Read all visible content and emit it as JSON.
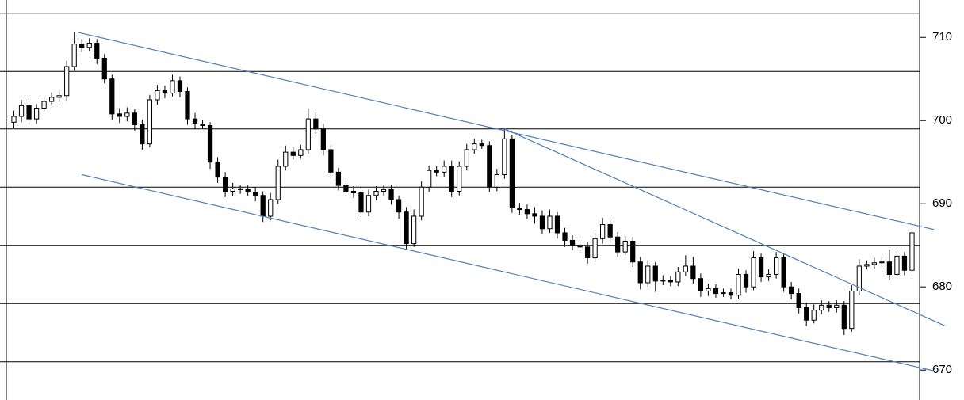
{
  "chart_data": {
    "type": "candlestick",
    "open": [
      699.8,
      700.5,
      701.8,
      700.2,
      701.5,
      702.3,
      702.8,
      703.0,
      706.5,
      709.2,
      708.8,
      709.3,
      707.5,
      705.0,
      700.8,
      700.5,
      700.9,
      699.5,
      697.2,
      702.5,
      703.6,
      703.3,
      704.8,
      703.5,
      700.2,
      699.6,
      699.4,
      695.0,
      693.2,
      691.5,
      691.8,
      691.7,
      691.4,
      691.0,
      688.5,
      690.5,
      694.5,
      696.2,
      695.8,
      696.5,
      700.2,
      699.0,
      696.5,
      693.8,
      692.2,
      691.5,
      691.3,
      689.0,
      691.0,
      691.5,
      691.7,
      690.5,
      689.0,
      685.2,
      688.5,
      692.0,
      694.0,
      693.8,
      694.5,
      691.5,
      694.5,
      696.5,
      697.2,
      697.0,
      692.0,
      693.5,
      697.8,
      689.5,
      689.3,
      688.8,
      688.5,
      687.0,
      688.5,
      686.5,
      685.6,
      685.0,
      684.8,
      683.5,
      685.8,
      687.5,
      686.0,
      684.2,
      685.5,
      683.0,
      680.5,
      682.5,
      680.7,
      680.8,
      680.6,
      681.8,
      682.5,
      681.0,
      679.5,
      679.8,
      679.2,
      679.3,
      679.0,
      681.5,
      680.0,
      683.5,
      681.2,
      681.5,
      683.5,
      680.0,
      679.2,
      677.5,
      676.0,
      677.2,
      677.8,
      677.5,
      677.8,
      675.0,
      679.5,
      682.5,
      682.7,
      682.9,
      683.0,
      681.5,
      683.7,
      682.0
    ],
    "high": [
      701.2,
      702.5,
      702.4,
      702.0,
      702.9,
      703.4,
      703.7,
      707.2,
      710.7,
      709.8,
      709.9,
      709.8,
      708.0,
      705.5,
      701.5,
      701.6,
      701.4,
      700.1,
      703.1,
      704.3,
      704.2,
      705.5,
      705.3,
      704.0,
      700.9,
      700.1,
      699.8,
      695.6,
      693.8,
      692.5,
      692.3,
      692.2,
      692.0,
      691.5,
      691.3,
      695.3,
      697.0,
      696.8,
      697.1,
      701.5,
      701.0,
      699.6,
      697.0,
      694.3,
      692.8,
      692.1,
      691.8,
      691.7,
      692.1,
      692.3,
      692.2,
      691.0,
      689.6,
      689.3,
      692.7,
      694.6,
      694.5,
      695.2,
      695.2,
      695.1,
      697.2,
      697.8,
      697.7,
      697.5,
      694.2,
      699.0,
      698.3,
      690.1,
      689.9,
      689.6,
      689.2,
      689.3,
      689.0,
      687.1,
      686.2,
      685.6,
      685.4,
      686.5,
      688.3,
      688.0,
      686.6,
      686.1,
      686.0,
      683.6,
      683.2,
      683.0,
      681.4,
      681.3,
      682.4,
      683.8,
      683.6,
      681.6,
      680.4,
      680.3,
      679.8,
      679.8,
      682.2,
      682.0,
      684.3,
      684.0,
      682.1,
      684.2,
      684.0,
      680.6,
      679.8,
      678.1,
      677.9,
      678.4,
      678.3,
      678.4,
      678.3,
      680.2,
      683.3,
      683.2,
      683.5,
      683.6,
      684.5,
      684.3,
      684.2,
      687.1
    ],
    "low": [
      699.1,
      699.8,
      699.5,
      699.6,
      701.0,
      701.8,
      702.2,
      702.3,
      706.0,
      708.2,
      708.3,
      706.8,
      704.5,
      700.1,
      699.7,
      699.9,
      698.8,
      696.5,
      696.8,
      701.9,
      702.7,
      702.9,
      702.8,
      699.5,
      699.0,
      699.0,
      694.2,
      692.5,
      690.8,
      690.9,
      691.2,
      690.9,
      690.3,
      687.8,
      688.0,
      690.0,
      694.0,
      695.3,
      695.4,
      696.0,
      698.4,
      695.8,
      693.0,
      691.6,
      690.9,
      690.7,
      688.4,
      688.5,
      690.4,
      691.0,
      689.9,
      688.2,
      684.5,
      684.8,
      688.0,
      691.4,
      693.3,
      693.2,
      690.8,
      691.0,
      694.0,
      696.0,
      696.6,
      691.4,
      691.5,
      693.0,
      688.9,
      688.7,
      688.2,
      687.6,
      686.3,
      686.5,
      685.8,
      684.8,
      684.4,
      684.1,
      682.8,
      683.0,
      685.2,
      685.3,
      683.6,
      683.8,
      682.4,
      679.7,
      680.0,
      679.4,
      680.2,
      680.1,
      680.1,
      681.3,
      680.4,
      678.8,
      678.9,
      678.7,
      678.8,
      678.5,
      678.6,
      679.3,
      679.6,
      680.6,
      680.7,
      681.0,
      679.4,
      678.5,
      676.8,
      675.3,
      675.6,
      676.7,
      677.0,
      676.9,
      674.2,
      674.6,
      679.0,
      682.1,
      682.2,
      682.4,
      680.8,
      681.0,
      681.4,
      681.6
    ],
    "close": [
      700.5,
      701.8,
      700.2,
      701.5,
      702.3,
      702.8,
      703.0,
      706.5,
      709.2,
      708.8,
      709.3,
      707.5,
      705.0,
      700.8,
      700.5,
      700.9,
      699.5,
      697.2,
      702.5,
      703.6,
      703.3,
      704.8,
      703.5,
      700.2,
      699.6,
      699.4,
      695.0,
      693.2,
      691.5,
      691.8,
      691.7,
      691.4,
      691.0,
      688.5,
      690.5,
      694.5,
      696.2,
      695.8,
      696.5,
      700.2,
      699.0,
      696.5,
      693.8,
      692.2,
      691.5,
      691.3,
      689.0,
      691.0,
      691.5,
      691.7,
      690.5,
      689.0,
      685.2,
      688.5,
      692.0,
      694.0,
      693.8,
      694.5,
      691.5,
      694.5,
      696.5,
      697.2,
      697.0,
      692.0,
      693.5,
      697.8,
      689.5,
      689.3,
      688.8,
      688.5,
      687.0,
      688.5,
      686.5,
      685.6,
      685.0,
      684.8,
      683.5,
      685.8,
      687.5,
      686.0,
      684.2,
      685.5,
      683.0,
      680.5,
      682.5,
      680.7,
      680.8,
      680.6,
      681.8,
      682.5,
      681.0,
      679.5,
      679.8,
      679.2,
      679.3,
      679.0,
      681.5,
      680.0,
      683.5,
      681.2,
      681.5,
      683.5,
      680.0,
      679.2,
      677.5,
      676.0,
      677.2,
      677.8,
      677.5,
      677.8,
      675.0,
      679.5,
      682.5,
      682.7,
      682.9,
      683.0,
      681.5,
      683.7,
      682.0,
      686.5
    ],
    "up_color": "#ffffff",
    "down_color": "#000000",
    "xlim": [
      -1,
      120
    ],
    "ylim": [
      666.4,
      714.5
    ],
    "yticks": [
      670,
      680,
      690,
      700,
      710
    ],
    "levels": [
      712.9,
      705.9,
      699.0,
      692.0,
      685.0,
      678.0,
      671.0
    ],
    "trendline_color": "#4f81bd",
    "trendlines": [
      {
        "x": [
          8.5,
          121.9
        ],
        "y": [
          710.6,
          686.9
        ]
      },
      {
        "x": [
          9.0,
          121.9
        ],
        "y": [
          693.5,
          669.9
        ]
      },
      {
        "x": [
          65.0,
          123.4
        ],
        "y": [
          699.0,
          675.3
        ]
      }
    ]
  }
}
